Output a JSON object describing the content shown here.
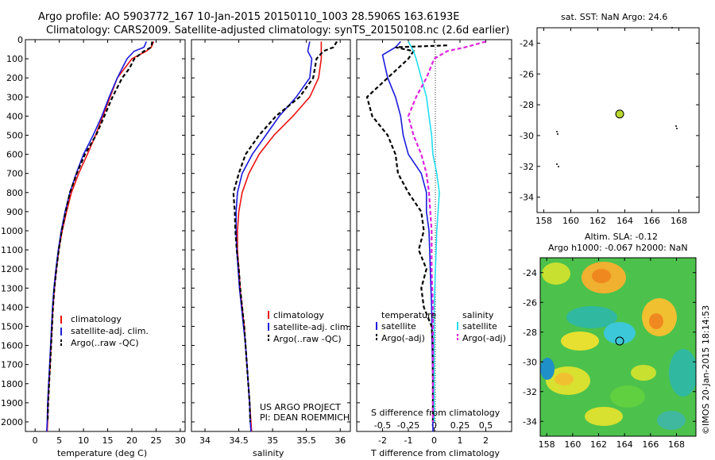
{
  "header": {
    "title_line1": "Argo profile: AO 5903772_167 10-Jan-2015 20150110_1003 28.5906S 163.6193E",
    "title_line2": "Climatology: CARS2009. Satellite-adjusted climatology: synTS_20150108.nc (2.6d earlier)"
  },
  "colors": {
    "climatology": "#ee1111",
    "satellite_adj": "#1b1bdd",
    "argo": "#000000",
    "sal_satellite": "#22ddee",
    "sal_argo": "#dd22dd"
  },
  "credits": {
    "project": "US ARGO PROJECT",
    "pi": "PI: DEAN ROEMMICH",
    "imos": "©IMOS 20-Jan-2015 18:14:53"
  },
  "chart_data": [
    {
      "id": "temperature",
      "type": "line",
      "xlabel": "temperature (deg C)",
      "ylabel": "",
      "xlim": [
        -2,
        31
      ],
      "ylim": [
        2050,
        0
      ],
      "xticks": [
        0,
        5,
        10,
        15,
        20,
        25,
        30
      ],
      "yticks": [
        0,
        100,
        200,
        300,
        400,
        500,
        600,
        700,
        800,
        900,
        1000,
        1100,
        1200,
        1300,
        1400,
        1500,
        1600,
        1700,
        1800,
        1900,
        2000
      ],
      "legend": [
        "climatology",
        "satellite-adj. clim.",
        "Argo(..raw -QC)"
      ],
      "series": [
        {
          "name": "climatology",
          "style": "solid",
          "color": "#ee1111",
          "points": [
            [
              24.5,
              10
            ],
            [
              24,
              40
            ],
            [
              23,
              60
            ],
            [
              20,
              100
            ],
            [
              18.5,
              150
            ],
            [
              17,
              200
            ],
            [
              15.5,
              300
            ],
            [
              14,
              400
            ],
            [
              12.5,
              500
            ],
            [
              10.8,
              600
            ],
            [
              9,
              700
            ],
            [
              7.5,
              800
            ],
            [
              6.5,
              900
            ],
            [
              5.6,
              1000
            ],
            [
              4.9,
              1100
            ],
            [
              4.4,
              1200
            ],
            [
              4,
              1300
            ],
            [
              3.7,
              1400
            ],
            [
              3.5,
              1500
            ],
            [
              3.3,
              1600
            ],
            [
              3.1,
              1700
            ],
            [
              2.9,
              1800
            ],
            [
              2.7,
              1900
            ],
            [
              2.6,
              2000
            ],
            [
              2.5,
              2050
            ]
          ]
        },
        {
          "name": "satellite-adj. clim.",
          "style": "solid",
          "color": "#1b1bdd",
          "points": [
            [
              23,
              10
            ],
            [
              22.5,
              40
            ],
            [
              20.5,
              60
            ],
            [
              19,
              100
            ],
            [
              18,
              150
            ],
            [
              17,
              200
            ],
            [
              15.3,
              300
            ],
            [
              13.8,
              400
            ],
            [
              12,
              500
            ],
            [
              10,
              600
            ],
            [
              8.5,
              700
            ],
            [
              7.2,
              800
            ],
            [
              6.2,
              900
            ],
            [
              5.4,
              1000
            ],
            [
              4.8,
              1100
            ],
            [
              4.3,
              1200
            ],
            [
              3.9,
              1300
            ],
            [
              3.6,
              1400
            ],
            [
              3.4,
              1500
            ],
            [
              3.2,
              1600
            ],
            [
              3,
              1700
            ],
            [
              2.8,
              1800
            ],
            [
              2.6,
              1900
            ],
            [
              2.5,
              2000
            ],
            [
              2.4,
              2050
            ]
          ]
        },
        {
          "name": "Argo(..raw -QC)",
          "style": "dashed",
          "color": "#000000",
          "points": [
            [
              24.2,
              10
            ],
            [
              24,
              40
            ],
            [
              22.5,
              60
            ],
            [
              20.5,
              100
            ],
            [
              19.5,
              150
            ],
            [
              18,
              200
            ],
            [
              16,
              300
            ],
            [
              14.3,
              400
            ],
            [
              12.6,
              500
            ],
            [
              10.3,
              600
            ],
            [
              8.6,
              700
            ],
            [
              7.2,
              800
            ],
            [
              6.3,
              900
            ],
            [
              5.5,
              1000
            ],
            [
              4.9,
              1100
            ],
            [
              4.4,
              1200
            ],
            [
              4,
              1300
            ],
            [
              3.7,
              1400
            ],
            [
              3.5,
              1500
            ],
            [
              3.3,
              1600
            ],
            [
              3.1,
              1700
            ],
            [
              2.9,
              1800
            ],
            [
              2.7,
              1900
            ],
            [
              2.6,
              2000
            ]
          ]
        }
      ]
    },
    {
      "id": "salinity",
      "type": "line",
      "xlabel": "salinity",
      "xlim": [
        33.8,
        36.15
      ],
      "ylim": [
        2050,
        0
      ],
      "xticks": [
        34,
        34.5,
        35,
        35.5,
        36
      ],
      "legend": [
        "climatology",
        "satellite-adj. clim.",
        "Argo(..raw -QC)"
      ],
      "series": [
        {
          "name": "climatology",
          "style": "solid",
          "color": "#ee1111",
          "points": [
            [
              35.72,
              10
            ],
            [
              35.72,
              60
            ],
            [
              35.72,
              100
            ],
            [
              35.68,
              200
            ],
            [
              35.55,
              300
            ],
            [
              35.3,
              400
            ],
            [
              35.02,
              500
            ],
            [
              34.8,
              600
            ],
            [
              34.65,
              700
            ],
            [
              34.55,
              800
            ],
            [
              34.5,
              900
            ],
            [
              34.48,
              1000
            ],
            [
              34.48,
              1100
            ],
            [
              34.5,
              1200
            ],
            [
              34.52,
              1300
            ],
            [
              34.55,
              1400
            ],
            [
              34.58,
              1500
            ],
            [
              34.6,
              1600
            ],
            [
              34.62,
              1700
            ],
            [
              34.64,
              1800
            ],
            [
              34.66,
              1900
            ],
            [
              34.68,
              2000
            ],
            [
              34.69,
              2050
            ]
          ]
        },
        {
          "name": "satellite-adj. clim.",
          "style": "solid",
          "color": "#1b1bdd",
          "points": [
            [
              35.55,
              10
            ],
            [
              35.52,
              60
            ],
            [
              35.58,
              100
            ],
            [
              35.55,
              200
            ],
            [
              35.35,
              300
            ],
            [
              35.1,
              400
            ],
            [
              34.9,
              500
            ],
            [
              34.7,
              600
            ],
            [
              34.55,
              700
            ],
            [
              34.48,
              800
            ],
            [
              34.46,
              900
            ],
            [
              34.46,
              1000
            ],
            [
              34.47,
              1100
            ],
            [
              34.49,
              1200
            ],
            [
              34.51,
              1300
            ],
            [
              34.54,
              1400
            ],
            [
              34.57,
              1500
            ],
            [
              34.6,
              1600
            ],
            [
              34.62,
              1700
            ],
            [
              34.64,
              1800
            ],
            [
              34.66,
              1900
            ],
            [
              34.67,
              2000
            ],
            [
              34.68,
              2050
            ]
          ]
        },
        {
          "name": "Argo(..raw -QC)",
          "style": "dashed",
          "color": "#000000",
          "points": [
            [
              35.95,
              10
            ],
            [
              35.9,
              40
            ],
            [
              35.75,
              60
            ],
            [
              35.65,
              100
            ],
            [
              35.6,
              200
            ],
            [
              35.4,
              300
            ],
            [
              35.05,
              400
            ],
            [
              34.8,
              500
            ],
            [
              34.6,
              600
            ],
            [
              34.5,
              700
            ],
            [
              34.42,
              800
            ],
            [
              34.44,
              900
            ],
            [
              34.45,
              1000
            ],
            [
              34.47,
              1100
            ],
            [
              34.5,
              1200
            ],
            [
              34.52,
              1300
            ],
            [
              34.55,
              1400
            ],
            [
              34.58,
              1500
            ],
            [
              34.6,
              1600
            ],
            [
              34.62,
              1700
            ],
            [
              34.64,
              1800
            ],
            [
              34.66,
              1900
            ],
            [
              34.67,
              2000
            ]
          ]
        }
      ]
    },
    {
      "id": "difference",
      "type": "line",
      "xlabel": "T difference from climatology",
      "xlabel_top": "S difference from climatology",
      "xlim": [
        -3,
        3
      ],
      "ylim": [
        2050,
        0
      ],
      "xticks": [
        -2,
        -1,
        0,
        1,
        2
      ],
      "xtick_labels_top": [
        "-0.5",
        "-0.25",
        "0",
        "0.25",
        "0.5"
      ],
      "legend_headers": [
        "temperature",
        "salinity"
      ],
      "legend": [
        "satellite",
        "Argo(-adj)",
        "satellite",
        "Argo(-adj)"
      ],
      "series": [
        {
          "name": "temperature satellite",
          "style": "solid",
          "color": "#1b1bdd",
          "points": [
            [
              -1.3,
              10
            ],
            [
              -1.5,
              40
            ],
            [
              -2,
              80
            ],
            [
              -1.8,
              200
            ],
            [
              -1.5,
              300
            ],
            [
              -1.3,
              400
            ],
            [
              -1.2,
              500
            ],
            [
              -1,
              600
            ],
            [
              -0.5,
              700
            ],
            [
              -0.3,
              800
            ],
            [
              -0.3,
              900
            ],
            [
              -0.2,
              1000
            ],
            [
              -0.15,
              1200
            ],
            [
              -0.1,
              1400
            ],
            [
              -0.08,
              1600
            ],
            [
              -0.05,
              1800
            ],
            [
              -0.05,
              2000
            ],
            [
              -0.05,
              2050
            ]
          ]
        },
        {
          "name": "temperature Argo(-adj)",
          "style": "dashed",
          "color": "#000000",
          "points": [
            [
              0.5,
              30
            ],
            [
              -1.5,
              40
            ],
            [
              -0.8,
              60
            ],
            [
              -1,
              100
            ],
            [
              -1.8,
              200
            ],
            [
              -2.6,
              300
            ],
            [
              -2.4,
              400
            ],
            [
              -1.8,
              500
            ],
            [
              -1.5,
              600
            ],
            [
              -1.4,
              700
            ],
            [
              -1,
              800
            ],
            [
              -0.5,
              900
            ],
            [
              -0.4,
              1000
            ],
            [
              -0.6,
              1100
            ],
            [
              -0.3,
              1200
            ],
            [
              -0.5,
              1300
            ],
            [
              -0.4,
              1400
            ],
            [
              -0.1,
              1500
            ],
            [
              -0.05,
              1600
            ],
            [
              -0.05,
              1800
            ],
            [
              -0.05,
              2000
            ]
          ]
        },
        {
          "name": "salinity satellite",
          "style": "solid",
          "color": "#22ddee",
          "points": [
            [
              -1,
              10
            ],
            [
              -0.8,
              60
            ],
            [
              -0.7,
              100
            ],
            [
              -0.5,
              200
            ],
            [
              -0.3,
              300
            ],
            [
              -0.2,
              400
            ],
            [
              -0.1,
              500
            ],
            [
              -0.05,
              600
            ],
            [
              0.1,
              700
            ],
            [
              0.2,
              800
            ],
            [
              0.15,
              900
            ],
            [
              0.1,
              1000
            ],
            [
              0.05,
              1200
            ],
            [
              0,
              1400
            ],
            [
              0,
              1600
            ],
            [
              0,
              1800
            ],
            [
              0,
              2000
            ]
          ]
        },
        {
          "name": "salinity Argo(-adj)",
          "style": "dashed",
          "color": "#dd22dd",
          "points": [
            [
              2,
              10
            ],
            [
              1.2,
              40
            ],
            [
              0.5,
              60
            ],
            [
              0,
              100
            ],
            [
              -0.3,
              200
            ],
            [
              -0.7,
              300
            ],
            [
              -1,
              400
            ],
            [
              -0.8,
              500
            ],
            [
              -0.5,
              600
            ],
            [
              -0.3,
              700
            ],
            [
              -0.2,
              800
            ],
            [
              -0.1,
              1000
            ],
            [
              -0.1,
              1200
            ],
            [
              -0.05,
              1400
            ],
            [
              -0.05,
              1600
            ],
            [
              -0.05,
              1800
            ],
            [
              -0.05,
              2000
            ]
          ]
        }
      ]
    },
    {
      "id": "sst_map",
      "type": "scatter",
      "title": "sat. SST: NaN Argo: 24.6",
      "xlim": [
        157.5,
        169.5
      ],
      "ylim": [
        -35,
        -23
      ],
      "xticks": [
        158,
        160,
        162,
        164,
        166,
        168
      ],
      "yticks": [
        -24,
        -26,
        -28,
        -30,
        -32,
        -34
      ],
      "points": [
        [
          163.62,
          -28.6
        ]
      ]
    },
    {
      "id": "sla_map",
      "type": "heatmap",
      "title_line1": "Altim. SLA: -0.12",
      "title_line2": "Argo h1000: -0.067 h2000: NaN",
      "xlim": [
        157.5,
        169.5
      ],
      "ylim": [
        -35,
        -23
      ],
      "xticks": [
        158,
        160,
        162,
        164,
        166,
        168
      ],
      "yticks": [
        -24,
        -26,
        -28,
        -30,
        -32,
        -34
      ],
      "points": [
        [
          163.62,
          -28.6
        ]
      ]
    }
  ]
}
